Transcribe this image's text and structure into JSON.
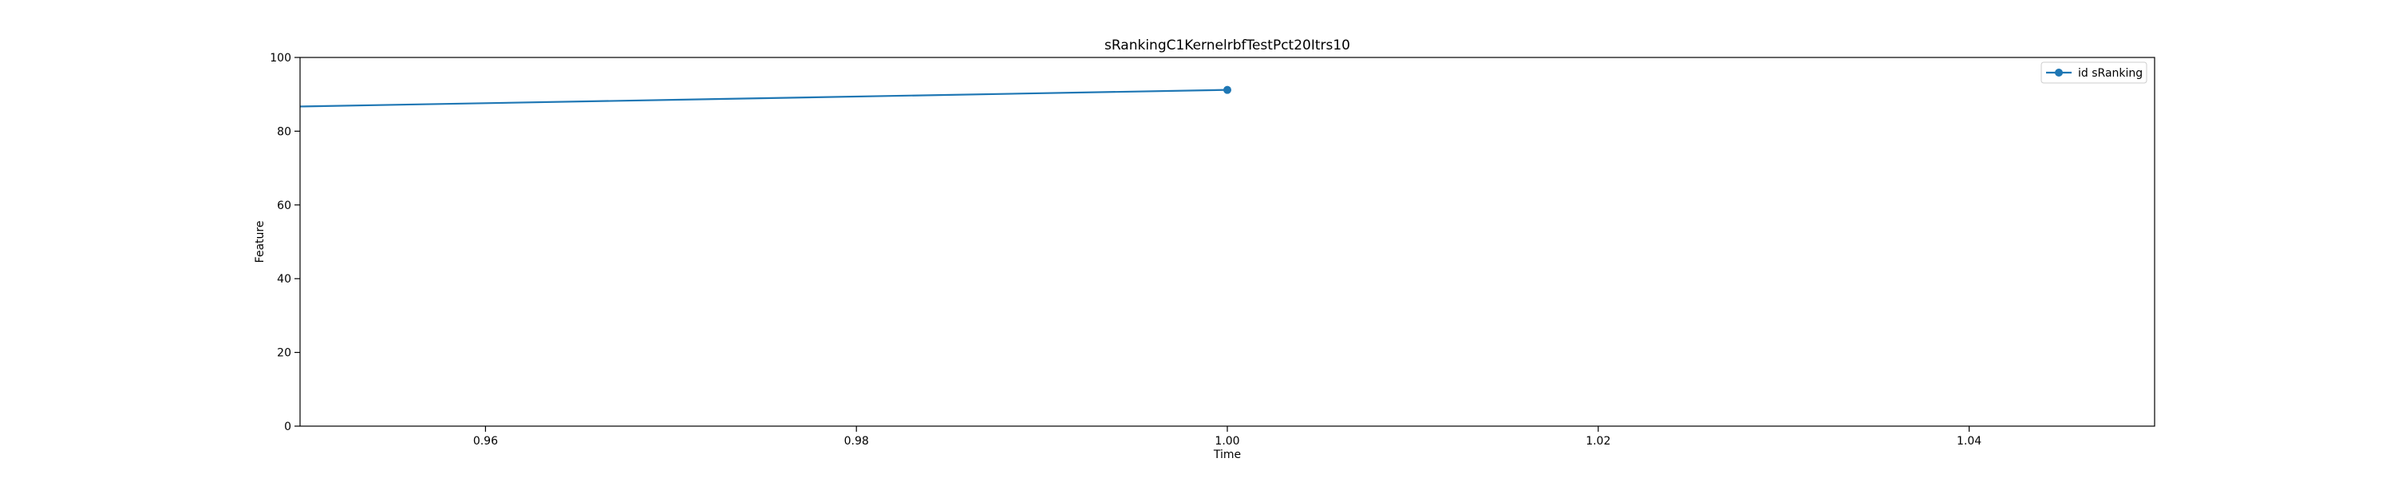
{
  "chart_data": {
    "type": "line",
    "title": "sRankingC1KernelrbfTestPct20Itrs10",
    "xlabel": "Time",
    "ylabel": "Feature",
    "xlim": [
      0.95,
      1.05
    ],
    "ylim": [
      0,
      100
    ],
    "x_ticks": [
      0.96,
      0.98,
      1.0,
      1.02,
      1.04
    ],
    "x_tick_labels": [
      "0.96",
      "0.98",
      "1.00",
      "1.02",
      "1.04"
    ],
    "y_ticks": [
      0,
      20,
      40,
      60,
      80,
      100
    ],
    "y_tick_labels": [
      "0",
      "20",
      "40",
      "60",
      "80",
      "100"
    ],
    "grid": false,
    "legend_position": "top-right",
    "series": [
      {
        "name": "id sRanking",
        "color": "#1f77b4",
        "marker": "circle",
        "points": [
          {
            "x": 0.95,
            "y": 86.7
          },
          {
            "x": 1.0,
            "y": 91.2
          }
        ],
        "markers_at": [
          1
        ]
      }
    ]
  }
}
